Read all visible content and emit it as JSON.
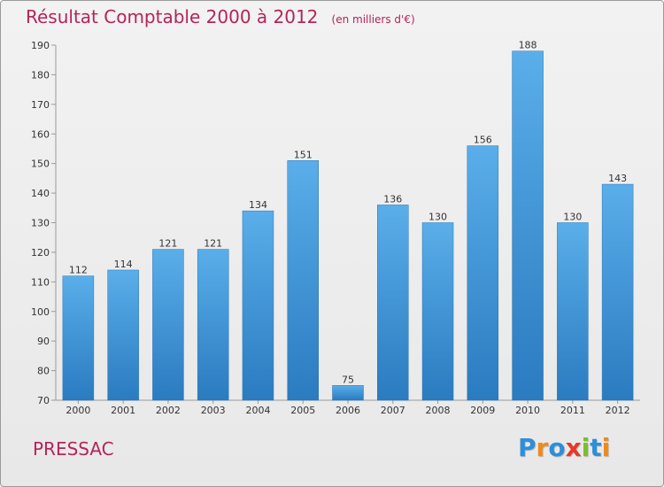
{
  "page": {
    "title": "Résultat Comptable 2000 à 2012",
    "subtitle": "(en milliers d'€)",
    "city": "PRESSAC",
    "logo": {
      "text": "Proxiti",
      "letters": [
        {
          "char": "P",
          "color": "#2f8ed8"
        },
        {
          "char": "r",
          "color": "#f08a1a"
        },
        {
          "char": "o",
          "color": "#2f8ed8"
        },
        {
          "char": "x",
          "color": "#e53a2a"
        },
        {
          "char": "i",
          "color": "#7bbf2a"
        },
        {
          "char": "t",
          "color": "#2f8ed8"
        },
        {
          "char": "i",
          "color": "#f08a1a"
        }
      ]
    }
  },
  "chart_data": {
    "type": "bar",
    "title": "Résultat Comptable 2000 à 2012",
    "subtitle": "(en milliers d'€)",
    "xlabel": "",
    "ylabel": "",
    "categories": [
      "2000",
      "2001",
      "2002",
      "2003",
      "2004",
      "2005",
      "2006",
      "2007",
      "2008",
      "2009",
      "2010",
      "2011",
      "2012"
    ],
    "values": [
      112,
      114,
      121,
      121,
      134,
      151,
      75,
      136,
      130,
      156,
      188,
      130,
      143
    ],
    "ylim": [
      70,
      190
    ],
    "yticks": [
      70,
      80,
      90,
      100,
      110,
      120,
      130,
      140,
      150,
      160,
      170,
      180,
      190
    ],
    "grid": false,
    "bar_color": "#3d91d6"
  }
}
